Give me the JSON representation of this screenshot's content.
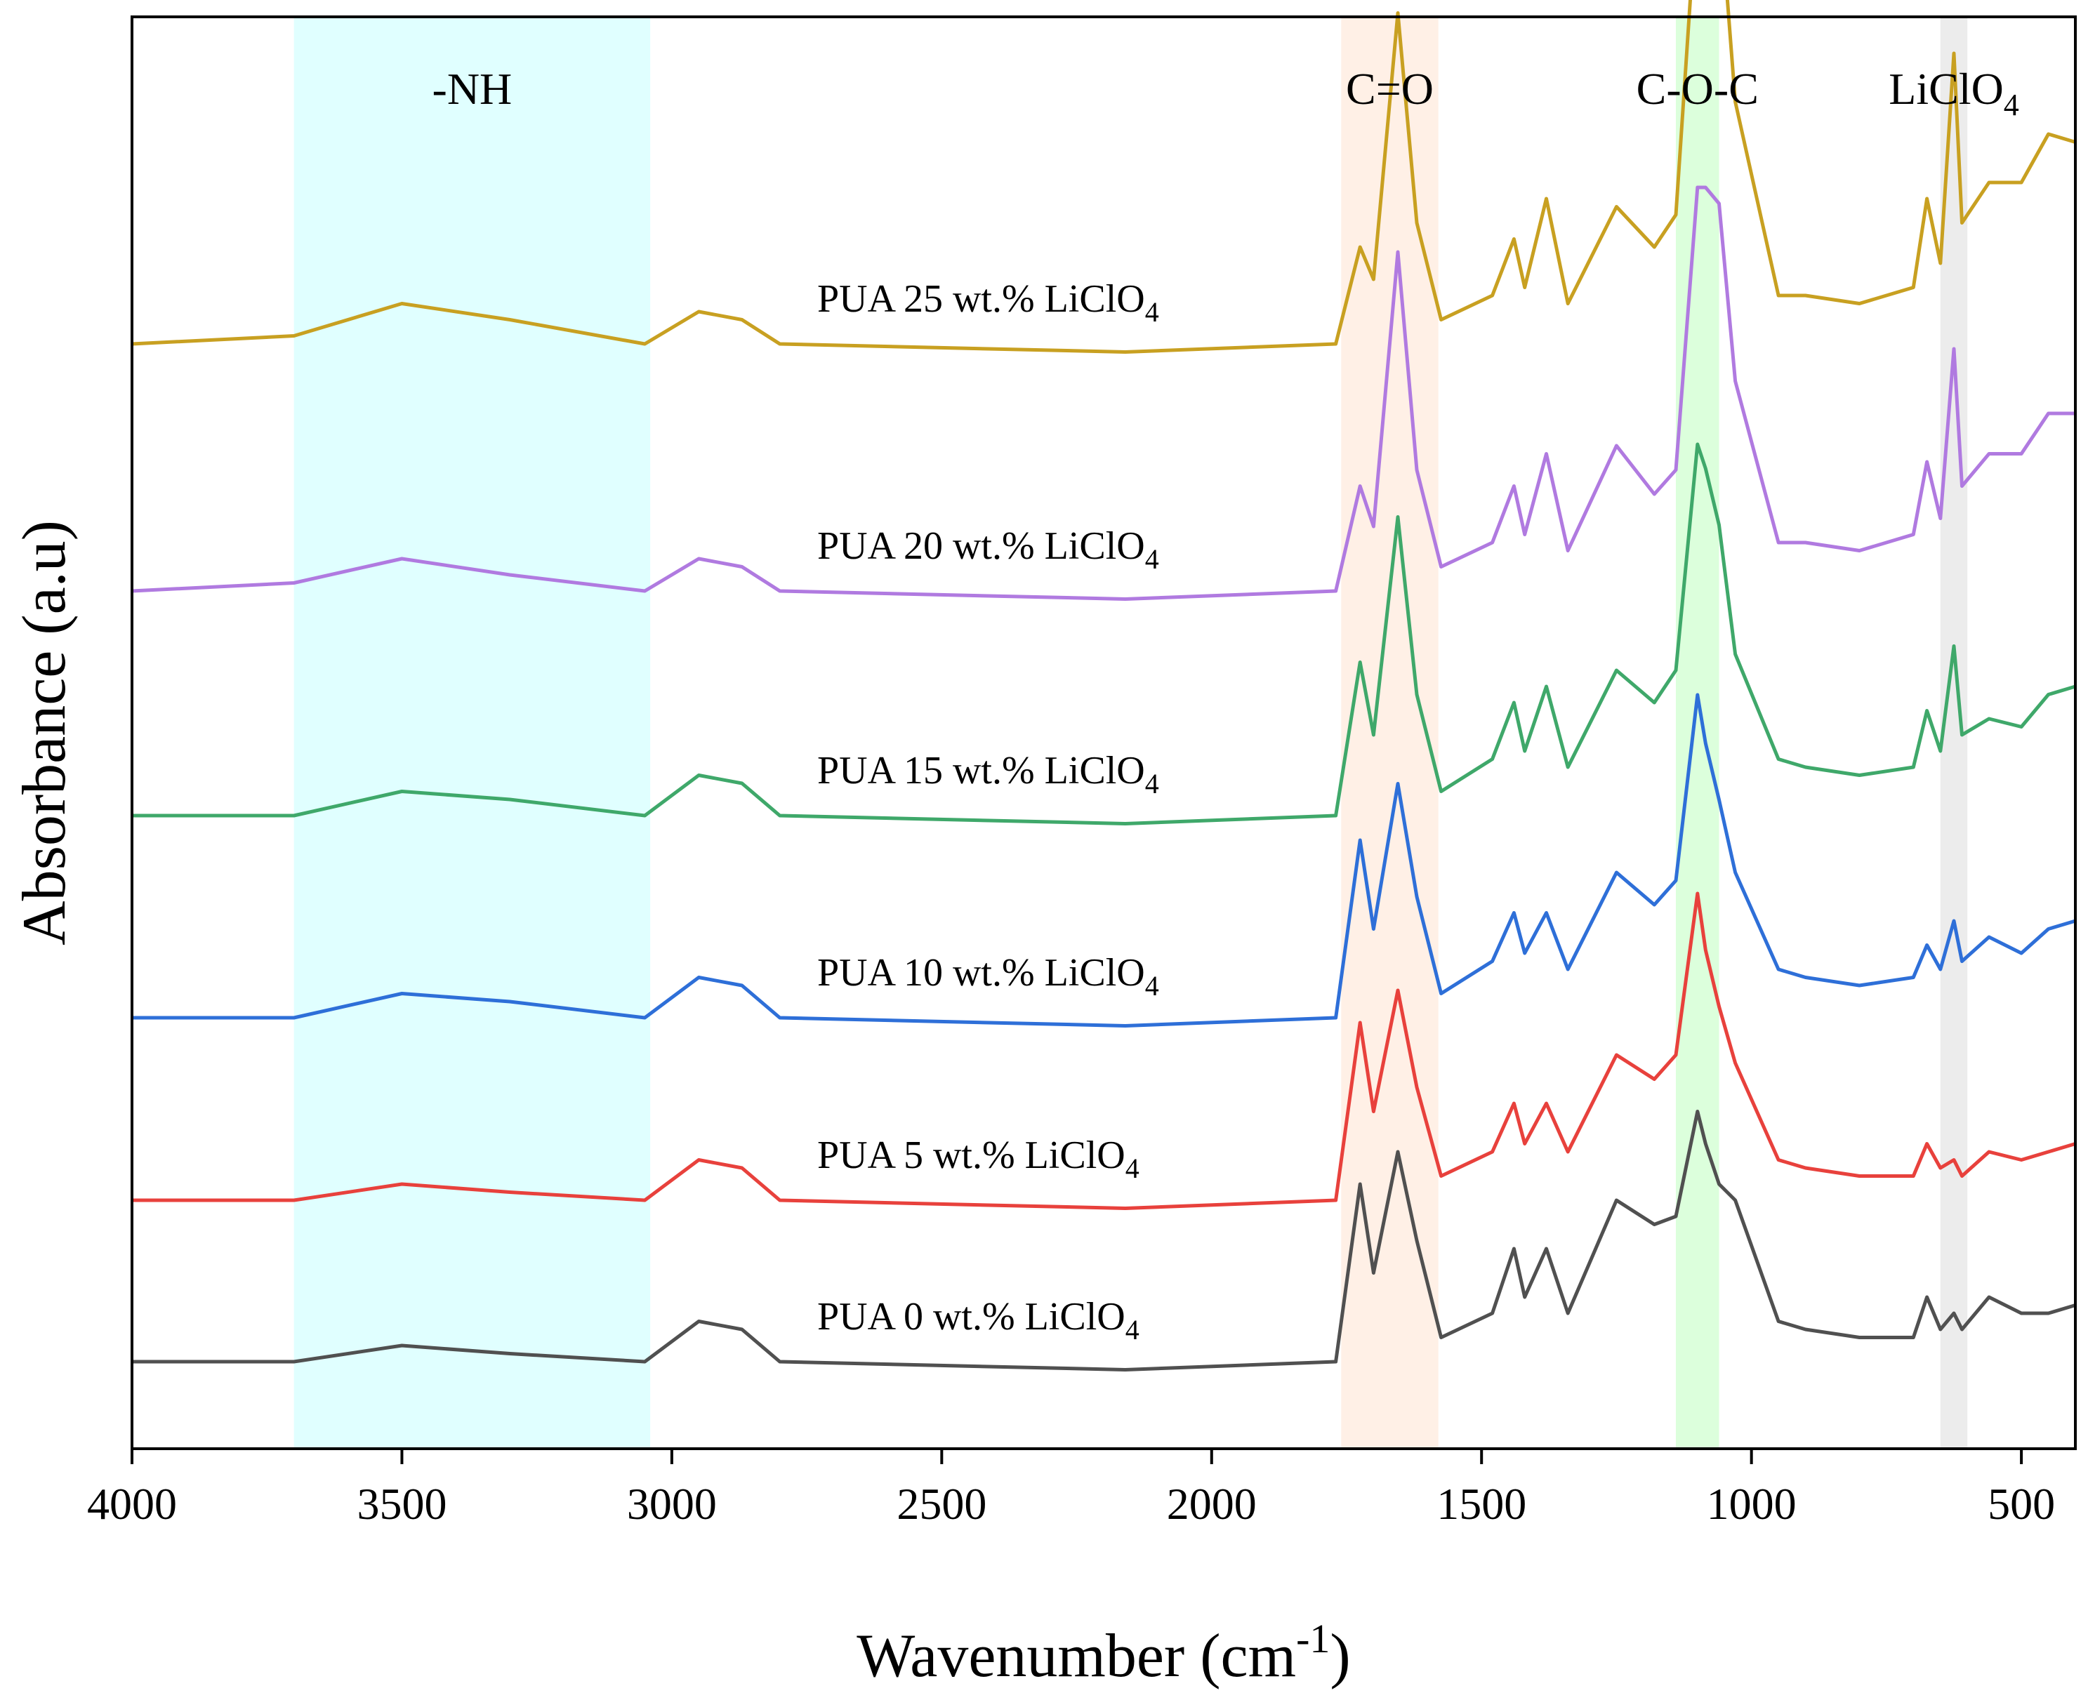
{
  "chart_data": {
    "type": "line",
    "xlabel": "Wavenumber (cm",
    "xlabel_sup": "-1",
    "xlabel_close": ")",
    "ylabel": "Absorbance (a.u)",
    "xlim": [
      4000,
      400
    ],
    "x_reversed": true,
    "xticks": [
      "4000",
      "3500",
      "3000",
      "2500",
      "2000",
      "1500",
      "1000",
      "500"
    ],
    "grid": false,
    "legend": "inline labels above each trace",
    "bands": [
      {
        "label": "-NH",
        "sub": "",
        "range": [
          3700,
          3040
        ],
        "color": "#e0ffff"
      },
      {
        "label": "C=O",
        "sub": "",
        "range": [
          1760,
          1580
        ],
        "color": "#fff0e6"
      },
      {
        "label": "C-O-C",
        "sub": "",
        "range": [
          1140,
          1060
        ],
        "color": "#dcffdc"
      },
      {
        "label": "LiClO",
        "sub": "4",
        "range": [
          650,
          600
        ],
        "color": "#ececec"
      }
    ],
    "series": [
      {
        "name": "PUA 25 wt.% LiClO",
        "name_sub": "4",
        "color": "#c8a021",
        "x": [
          4000,
          3700,
          3500,
          3300,
          3050,
          2950,
          2870,
          2800,
          2160,
          1770,
          1725,
          1700,
          1655,
          1620,
          1575,
          1480,
          1440,
          1420,
          1380,
          1340,
          1250,
          1180,
          1140,
          1100,
          1085,
          1060,
          1030,
          950,
          900,
          800,
          700,
          675,
          650,
          625,
          610,
          560,
          500,
          450,
          400
        ],
        "y": [
          0.0,
          0.01,
          0.05,
          0.03,
          0.0,
          0.04,
          0.03,
          0.0,
          -0.01,
          0.0,
          0.12,
          0.08,
          0.41,
          0.15,
          0.03,
          0.06,
          0.13,
          0.07,
          0.18,
          0.05,
          0.17,
          0.12,
          0.16,
          0.56,
          0.57,
          0.56,
          0.3,
          0.06,
          0.06,
          0.05,
          0.07,
          0.18,
          0.1,
          0.36,
          0.15,
          0.2,
          0.2,
          0.26,
          0.25
        ]
      },
      {
        "name": "PUA 20 wt.% LiClO",
        "name_sub": "4",
        "color": "#b07ae0",
        "x": [
          4000,
          3700,
          3500,
          3300,
          3050,
          2950,
          2870,
          2800,
          2160,
          1770,
          1725,
          1700,
          1655,
          1620,
          1575,
          1480,
          1440,
          1420,
          1380,
          1340,
          1250,
          1180,
          1140,
          1100,
          1085,
          1060,
          1030,
          950,
          900,
          800,
          700,
          675,
          650,
          625,
          610,
          560,
          500,
          450,
          400
        ],
        "y": [
          0.0,
          0.01,
          0.04,
          0.02,
          0.0,
          0.04,
          0.03,
          0.0,
          -0.01,
          0.0,
          0.13,
          0.08,
          0.42,
          0.15,
          0.03,
          0.06,
          0.13,
          0.07,
          0.17,
          0.05,
          0.18,
          0.12,
          0.15,
          0.5,
          0.5,
          0.48,
          0.26,
          0.06,
          0.06,
          0.05,
          0.07,
          0.16,
          0.09,
          0.3,
          0.13,
          0.17,
          0.17,
          0.22,
          0.22
        ]
      },
      {
        "name": "PUA 15 wt.% LiClO",
        "name_sub": "4",
        "color": "#3fa86a",
        "x": [
          4000,
          3700,
          3500,
          3300,
          3050,
          2950,
          2870,
          2800,
          2160,
          1770,
          1725,
          1700,
          1655,
          1620,
          1575,
          1480,
          1440,
          1420,
          1380,
          1340,
          1250,
          1180,
          1140,
          1100,
          1085,
          1060,
          1030,
          950,
          900,
          800,
          700,
          675,
          650,
          625,
          610,
          560,
          500,
          450,
          400
        ],
        "y": [
          0.0,
          0.0,
          0.03,
          0.02,
          0.0,
          0.05,
          0.04,
          0.0,
          -0.01,
          0.0,
          0.19,
          0.1,
          0.37,
          0.15,
          0.03,
          0.07,
          0.14,
          0.08,
          0.16,
          0.06,
          0.18,
          0.14,
          0.18,
          0.46,
          0.43,
          0.36,
          0.2,
          0.07,
          0.06,
          0.05,
          0.06,
          0.13,
          0.08,
          0.21,
          0.1,
          0.12,
          0.11,
          0.15,
          0.16
        ]
      },
      {
        "name": "PUA 10 wt.% LiClO",
        "name_sub": "4",
        "color": "#2e6fd8",
        "x": [
          4000,
          3700,
          3500,
          3300,
          3050,
          2950,
          2870,
          2800,
          2160,
          1770,
          1725,
          1700,
          1655,
          1620,
          1575,
          1480,
          1440,
          1420,
          1380,
          1340,
          1250,
          1180,
          1140,
          1100,
          1085,
          1060,
          1030,
          950,
          900,
          800,
          700,
          675,
          650,
          625,
          610,
          560,
          500,
          450,
          400
        ],
        "y": [
          0.0,
          0.0,
          0.03,
          0.02,
          0.0,
          0.05,
          0.04,
          0.0,
          -0.01,
          0.0,
          0.22,
          0.11,
          0.29,
          0.15,
          0.03,
          0.07,
          0.13,
          0.08,
          0.13,
          0.06,
          0.18,
          0.14,
          0.17,
          0.4,
          0.34,
          0.27,
          0.18,
          0.06,
          0.05,
          0.04,
          0.05,
          0.09,
          0.06,
          0.12,
          0.07,
          0.1,
          0.08,
          0.11,
          0.12
        ]
      },
      {
        "name": "PUA 5 wt.% LiClO",
        "name_sub": "4",
        "color": "#e8413c",
        "x": [
          4000,
          3700,
          3500,
          3300,
          3050,
          2950,
          2870,
          2800,
          2160,
          1770,
          1725,
          1700,
          1655,
          1620,
          1575,
          1480,
          1440,
          1420,
          1380,
          1340,
          1250,
          1180,
          1140,
          1100,
          1085,
          1060,
          1030,
          950,
          900,
          800,
          700,
          675,
          650,
          625,
          610,
          560,
          500,
          450,
          400
        ],
        "y": [
          0.0,
          0.0,
          0.02,
          0.01,
          0.0,
          0.05,
          0.04,
          0.0,
          -0.01,
          0.0,
          0.22,
          0.11,
          0.26,
          0.14,
          0.03,
          0.06,
          0.12,
          0.07,
          0.12,
          0.06,
          0.18,
          0.15,
          0.18,
          0.38,
          0.31,
          0.24,
          0.17,
          0.05,
          0.04,
          0.03,
          0.03,
          0.07,
          0.04,
          0.05,
          0.03,
          0.06,
          0.05,
          0.06,
          0.07
        ]
      },
      {
        "name": "PUA 0 wt.% LiClO",
        "name_sub": "4",
        "color": "#505050",
        "x": [
          4000,
          3700,
          3500,
          3300,
          3050,
          2950,
          2870,
          2800,
          2160,
          1770,
          1725,
          1700,
          1655,
          1620,
          1575,
          1480,
          1440,
          1420,
          1380,
          1340,
          1250,
          1180,
          1140,
          1100,
          1085,
          1060,
          1030,
          950,
          900,
          800,
          700,
          675,
          650,
          625,
          610,
          560,
          500,
          450,
          400
        ],
        "y": [
          0.0,
          0.0,
          0.02,
          0.01,
          0.0,
          0.05,
          0.04,
          0.0,
          -0.01,
          0.0,
          0.22,
          0.11,
          0.26,
          0.15,
          0.03,
          0.06,
          0.14,
          0.08,
          0.14,
          0.06,
          0.2,
          0.17,
          0.18,
          0.31,
          0.27,
          0.22,
          0.2,
          0.05,
          0.04,
          0.03,
          0.03,
          0.08,
          0.04,
          0.06,
          0.04,
          0.08,
          0.06,
          0.06,
          0.07
        ]
      }
    ]
  }
}
